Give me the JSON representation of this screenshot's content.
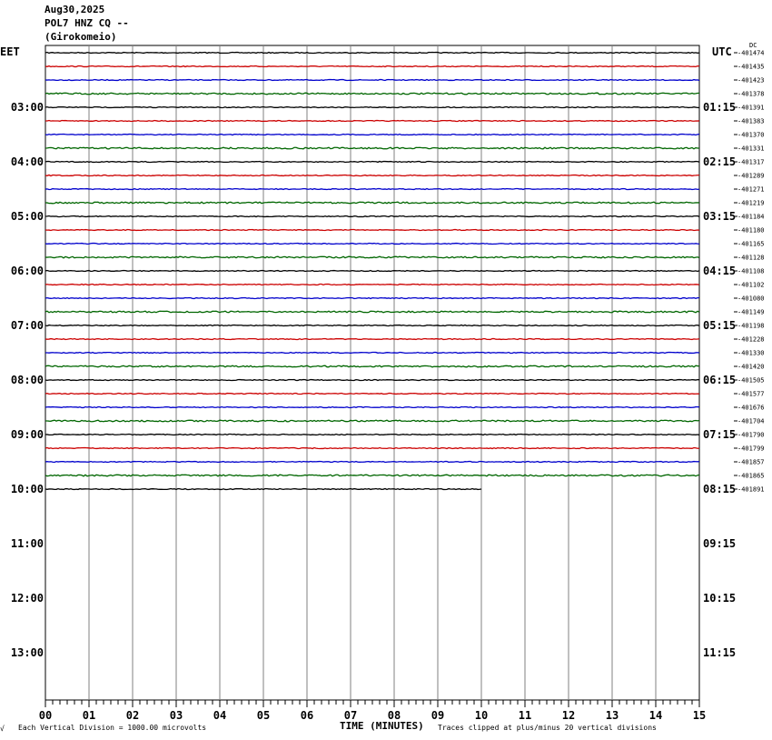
{
  "header": {
    "date": "Aug30,2025",
    "station": "POL7 HNZ CQ --",
    "location": "(Girokomeio)"
  },
  "left_tz": "EET",
  "right_tz": "UTC",
  "dc_label": "DC",
  "footer": {
    "scale": "Each Vertical Division = 1000.00 microvolts",
    "clip": "Traces clipped at plus/minus 20 vertical divisions",
    "corner": "√"
  },
  "colors": {
    "trace_cycle": [
      "#000000",
      "#cc0000",
      "#0000cc",
      "#006600"
    ],
    "grid": "#808080"
  },
  "chart_data": {
    "type": "line",
    "xlabel": "TIME (MINUTES)",
    "x_ticks": [
      "00",
      "01",
      "02",
      "03",
      "04",
      "05",
      "06",
      "07",
      "08",
      "09",
      "10",
      "11",
      "12",
      "13",
      "14",
      "15"
    ],
    "xlim": [
      0,
      15
    ],
    "rows_per_hour": 4,
    "left_hour_labels": [
      "03:00",
      "04:00",
      "05:00",
      "06:00",
      "07:00",
      "08:00",
      "09:00",
      "10:00",
      "11:00",
      "12:00",
      "13:00"
    ],
    "right_hour_labels": [
      "01:15",
      "02:15",
      "03:15",
      "04:15",
      "05:15",
      "06:15",
      "07:15",
      "08:15",
      "09:15",
      "10:15",
      "11:15"
    ],
    "dc_offsets": [
      "-401474",
      "-401435",
      "-401423",
      "-401378",
      "-401391",
      "-401383",
      "-401370",
      "-401331",
      "-401317",
      "-401289",
      "-401271",
      "-401219",
      "-401184",
      "-401180",
      "-401165",
      "-401128",
      "-401108",
      "-401102",
      "-401080",
      "-401149",
      "-401198",
      "-401228",
      "-401330",
      "-401420",
      "-401505",
      "-401577",
      "-401676",
      "-401704",
      "-401790",
      "-401799",
      "-401857",
      "-401865",
      "-401891"
    ],
    "trace_count": 33,
    "last_trace_end_minute": 10
  }
}
